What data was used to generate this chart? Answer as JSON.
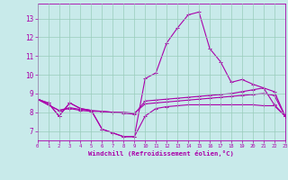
{
  "bg_color": "#c8eaea",
  "line_color": "#aa00aa",
  "grid_color": "#99ccbb",
  "xlabel": "Windchill (Refroidissement éolien,°C)",
  "xlim": [
    0,
    23
  ],
  "ylim": [
    6.5,
    13.8
  ],
  "yticks": [
    7,
    8,
    9,
    10,
    11,
    12,
    13
  ],
  "xticks": [
    0,
    1,
    2,
    3,
    4,
    5,
    6,
    7,
    8,
    9,
    10,
    11,
    12,
    13,
    14,
    15,
    16,
    17,
    18,
    19,
    20,
    21,
    22,
    23
  ],
  "line1_x": [
    0,
    1,
    2,
    3,
    4,
    5,
    6,
    7,
    8,
    9,
    10,
    11,
    12,
    13,
    14,
    15,
    16,
    17,
    18,
    19,
    20,
    21,
    22,
    23
  ],
  "line1_y": [
    8.7,
    8.5,
    7.8,
    8.5,
    8.2,
    8.1,
    7.1,
    6.9,
    6.7,
    6.7,
    7.8,
    8.2,
    8.3,
    8.35,
    8.4,
    8.4,
    8.4,
    8.4,
    8.4,
    8.4,
    8.4,
    8.35,
    8.35,
    7.8
  ],
  "line2_x": [
    0,
    1,
    2,
    3,
    4,
    5,
    6,
    7,
    8,
    9,
    10,
    11,
    12,
    13,
    14,
    15,
    16,
    17,
    18,
    19,
    20,
    21,
    22,
    23
  ],
  "line2_y": [
    8.7,
    8.5,
    7.8,
    8.5,
    8.2,
    8.1,
    7.1,
    6.9,
    6.7,
    6.7,
    9.8,
    10.1,
    11.7,
    12.5,
    13.2,
    13.35,
    11.4,
    10.7,
    9.6,
    9.75,
    9.5,
    9.3,
    8.4,
    7.8
  ],
  "line3_x": [
    0,
    1,
    2,
    3,
    4,
    5,
    6,
    7,
    8,
    9,
    10,
    11,
    12,
    13,
    14,
    15,
    16,
    17,
    18,
    19,
    20,
    21,
    22,
    23
  ],
  "line3_y": [
    8.7,
    8.4,
    8.1,
    8.2,
    8.1,
    8.05,
    8.05,
    8.0,
    8.0,
    7.95,
    8.45,
    8.5,
    8.55,
    8.6,
    8.65,
    8.7,
    8.75,
    8.8,
    8.85,
    8.9,
    8.95,
    9.0,
    8.9,
    7.8
  ],
  "line4_x": [
    0,
    1,
    2,
    3,
    4,
    5,
    6,
    7,
    8,
    9,
    10,
    11,
    12,
    13,
    14,
    15,
    16,
    17,
    18,
    19,
    20,
    21,
    22,
    23
  ],
  "line4_y": [
    8.7,
    8.4,
    8.1,
    8.25,
    8.15,
    8.1,
    8.05,
    8.0,
    7.95,
    7.9,
    8.6,
    8.65,
    8.7,
    8.75,
    8.8,
    8.85,
    8.9,
    8.95,
    9.0,
    9.1,
    9.2,
    9.3,
    9.1,
    7.8
  ]
}
